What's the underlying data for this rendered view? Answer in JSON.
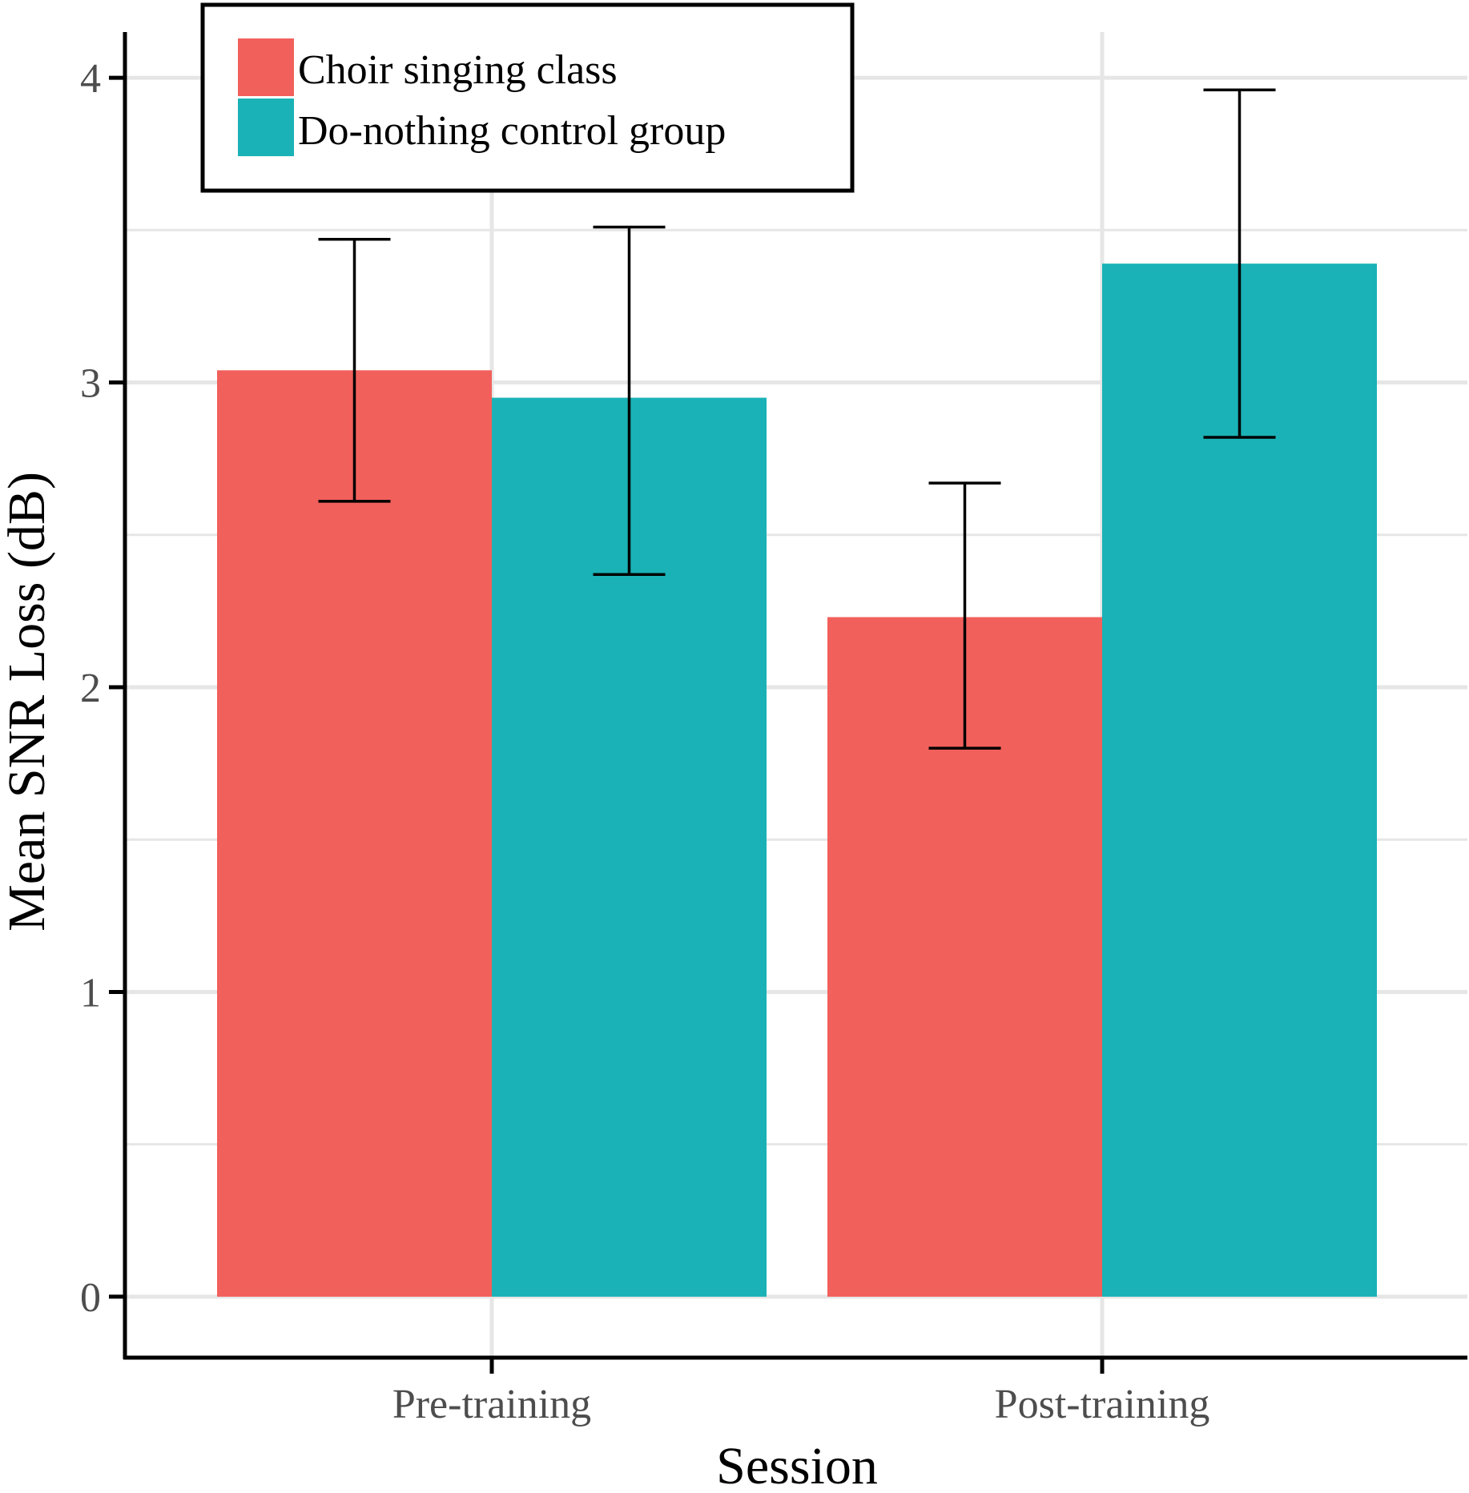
{
  "chart_data": {
    "type": "bar",
    "title": "",
    "xlabel": "Session",
    "ylabel": "Mean SNR Loss (dB)",
    "categories": [
      "Pre-training",
      "Post-training"
    ],
    "ylim": [
      -0.2,
      4.15
    ],
    "yticks": [
      0,
      1,
      2,
      3,
      4
    ],
    "ytick_labels": [
      "0",
      "1",
      "2",
      "3",
      "4"
    ],
    "grid": true,
    "legend_position": "top-left",
    "series": [
      {
        "name": "Choir singing class",
        "color": "#F2605C",
        "values": [
          3.04,
          2.23
        ],
        "error_low": [
          2.61,
          1.8
        ],
        "error_high": [
          3.47,
          2.67
        ]
      },
      {
        "name": "Do-nothing control group",
        "color": "#1AB2B6",
        "values": [
          2.95,
          3.39
        ],
        "error_low": [
          2.37,
          2.82
        ],
        "error_high": [
          3.51,
          3.96
        ]
      }
    ]
  }
}
